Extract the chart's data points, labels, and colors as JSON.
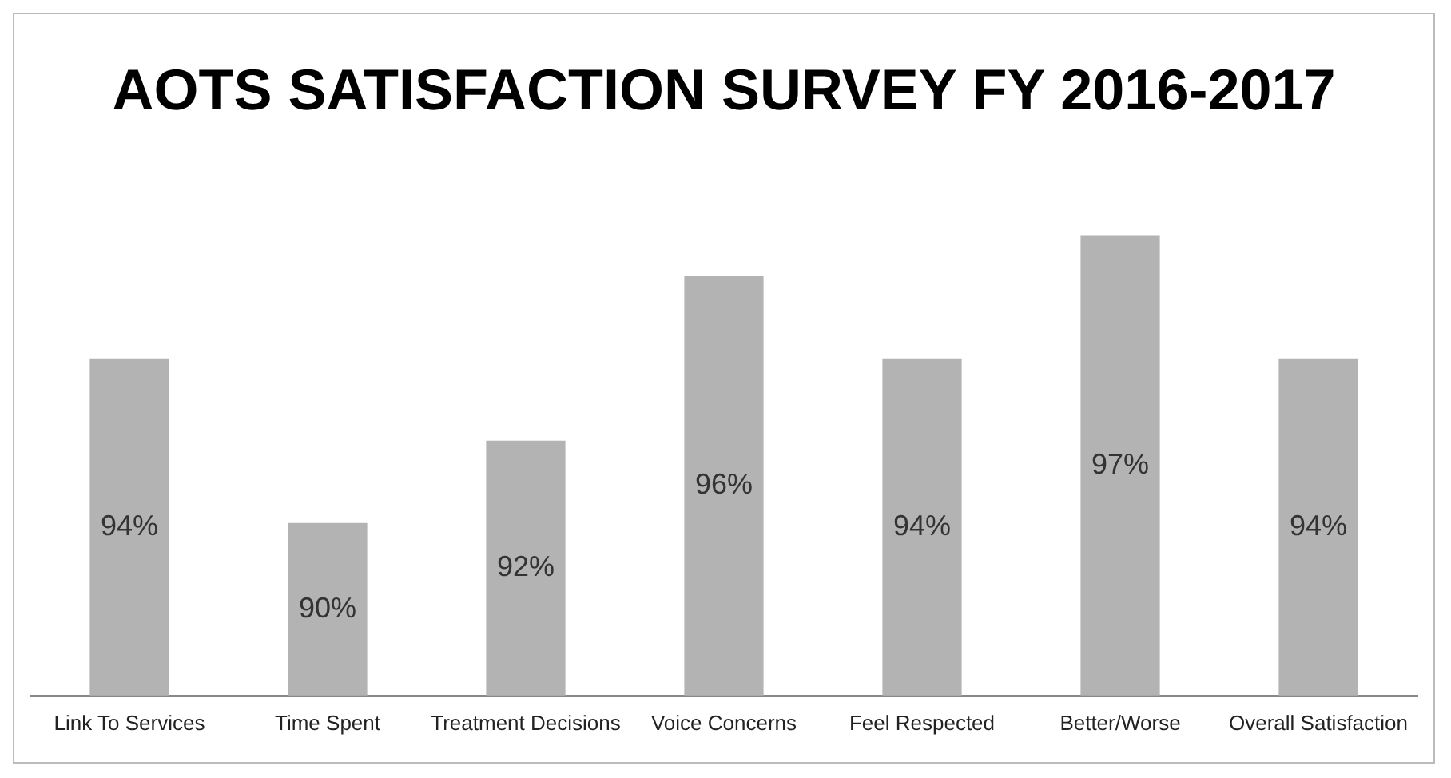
{
  "chart_data": {
    "type": "bar",
    "title": "AOTS SATISFACTION SURVEY FY 2016-2017",
    "categories": [
      "Link To Services",
      "Time Spent",
      "Treatment Decisions",
      "Voice Concerns",
      "Feel Respected",
      "Better/Worse",
      "Overall Satisfaction"
    ],
    "values": [
      94,
      90,
      92,
      96,
      94,
      97,
      94
    ],
    "value_labels": [
      "94%",
      "90%",
      "92%",
      "96%",
      "94%",
      "97%",
      "94%"
    ],
    "color": "#b3b3b3",
    "grid": false,
    "legend": false
  }
}
